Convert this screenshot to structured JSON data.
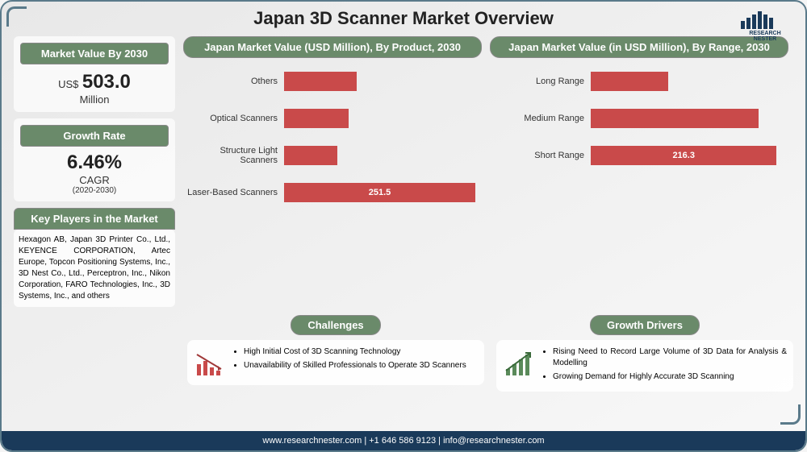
{
  "title": "Japan 3D Scanner Market Overview",
  "logo_name": "RESEARCH NESTER",
  "logo_bar_heights": [
    10,
    14,
    18,
    22,
    18,
    14
  ],
  "logo_bar_color": "#1a3a5a",
  "market_value": {
    "header": "Market Value By 2030",
    "prefix": "US$",
    "value": "503.0",
    "unit": "Million"
  },
  "growth_rate": {
    "header": "Growth Rate",
    "value": "6.46%",
    "unit": "CAGR",
    "period": "(2020-2030)"
  },
  "key_players": {
    "header": "Key Players in the Market",
    "text": "Hexagon AB, Japan 3D Printer Co., Ltd., KEYENCE CORPORATION, Artec Europe, Topcon Positioning Systems, Inc., 3D Nest Co., Ltd., Perceptron, Inc., Nikon Corporation, FARO Technologies, Inc., 3D Systems, Inc., and others"
  },
  "chart1": {
    "type": "bar",
    "title": "Japan Market Value (USD Million), By Product, 2030",
    "categories": [
      "Others",
      "Optical Scanners",
      "Structure Light Scanners",
      "Laser-Based Scanners"
    ],
    "values": [
      95,
      85,
      70,
      251.5
    ],
    "show_value": [
      false,
      false,
      false,
      true
    ],
    "bar_color": "#c94a4a",
    "max": 260,
    "label_fontsize": 11
  },
  "chart2": {
    "type": "bar",
    "title": "Japan Market Value (in USD Million), By Range, 2030",
    "categories": [
      "Long Range",
      "Medium Range",
      "Short Range"
    ],
    "values": [
      90,
      195,
      216.3
    ],
    "show_value": [
      false,
      false,
      true
    ],
    "bar_color": "#c94a4a",
    "max": 230,
    "label_fontsize": 11
  },
  "challenges": {
    "header": "Challenges",
    "items": [
      "High Initial Cost of 3D Scanning Technology",
      "Unavailability of Skilled Professionals to Operate 3D Scanners"
    ],
    "icon_colors": [
      "#c94a4a",
      "#a03838"
    ]
  },
  "growth_drivers": {
    "header": "Growth Drivers",
    "items": [
      "Rising Need to Record Large Volume of 3D Data for Analysis & Modelling",
      "Growing Demand for Highly Accurate 3D Scanning"
    ],
    "icon_colors": [
      "#5a8a5a",
      "#3a6a3a"
    ]
  },
  "footer": "www.researchnester.com | +1 646 586 9123 | info@researchnester.com",
  "colors": {
    "header_box": "#6a8a6a",
    "border": "#5a7a8a",
    "footer_bg": "#1a3a5a"
  }
}
